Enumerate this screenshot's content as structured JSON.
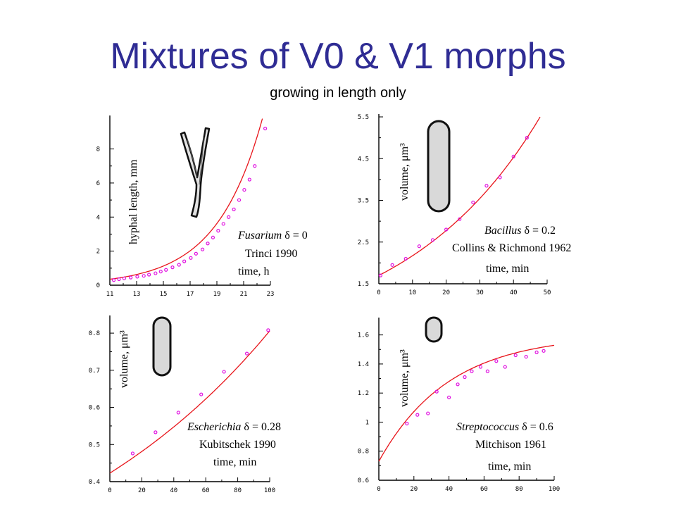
{
  "title": "Mixtures of V0 & V1 morphs",
  "subtitle": "growing in length only",
  "colors": {
    "title": "#2f2c94",
    "curve": "#e8151b",
    "points": "#e010e0"
  },
  "chart_data": [
    {
      "id": "fusarium",
      "type": "scatter",
      "ylabel": "hyphal length, mm",
      "xlabel": "time, h",
      "annotation_italic": "Fusarium",
      "annotation_rest": " δ = 0",
      "citation": "Trinci 1990",
      "x_ticks": [
        "11",
        "13",
        "15",
        "17",
        "19",
        "21",
        "23"
      ],
      "y_ticks": [
        "0",
        "2",
        "4",
        "6",
        "8"
      ],
      "xlim": [
        11,
        23.3
      ],
      "ylim": [
        0,
        9.8
      ],
      "x": [
        11.3,
        11.7,
        12.1,
        12.6,
        13.1,
        13.6,
        14.0,
        14.5,
        14.9,
        15.3,
        15.8,
        16.3,
        16.7,
        17.2,
        17.6,
        18.1,
        18.5,
        18.9,
        19.3,
        19.7,
        20.1,
        20.5,
        20.9,
        21.3,
        21.7,
        22.1,
        22.9
      ],
      "y": [
        0.3,
        0.35,
        0.4,
        0.45,
        0.5,
        0.55,
        0.62,
        0.7,
        0.8,
        0.9,
        1.05,
        1.2,
        1.4,
        1.6,
        1.85,
        2.1,
        2.45,
        2.8,
        3.2,
        3.6,
        4.0,
        4.45,
        5.0,
        5.6,
        6.2,
        7.0,
        9.2
      ],
      "fit": {
        "model": "exp",
        "a": 0.35,
        "b": 0.285,
        "x0": 11
      }
    },
    {
      "id": "bacillus",
      "type": "scatter",
      "ylabel": "volume, μm³",
      "xlabel": "time, min",
      "annotation_italic": "Bacillus",
      "annotation_rest": " δ = 0.2",
      "citation": "Collins & Richmond 1962",
      "x_ticks": [
        "0",
        "10",
        "20",
        "30",
        "40",
        "50"
      ],
      "y_ticks": [
        "1.5",
        "2.5",
        "3.5",
        "4.5",
        "5.5"
      ],
      "xlim": [
        0,
        50
      ],
      "ylim": [
        1.5,
        5.5
      ],
      "x": [
        0.5,
        4,
        8,
        12,
        16,
        20,
        24,
        28,
        32,
        36,
        40,
        44
      ],
      "y": [
        1.7,
        1.95,
        2.1,
        2.4,
        2.55,
        2.8,
        3.05,
        3.45,
        3.85,
        4.05,
        4.55,
        5.0
      ],
      "fit": {
        "model": "exp",
        "a": 1.7,
        "b": 0.0245,
        "x0": 0
      }
    },
    {
      "id": "escherichia",
      "type": "scatter",
      "ylabel": "volume, μm³",
      "xlabel": "time, min",
      "annotation_italic": "Escherichia",
      "annotation_rest": " δ = 0.28",
      "citation": "Kubitschek 1990",
      "x_ticks": [
        "0",
        "20",
        "40",
        "60",
        "80",
        "100"
      ],
      "y_ticks": [
        "0.4",
        "0.5",
        "0.6",
        "0.7",
        "0.8"
      ],
      "xlim": [
        0,
        105
      ],
      "ylim": [
        0.4,
        0.84
      ],
      "x": [
        15,
        30,
        45,
        60,
        75,
        90,
        104
      ],
      "y": [
        0.476,
        0.533,
        0.586,
        0.635,
        0.696,
        0.745,
        0.808
      ],
      "fit": {
        "model": "exp",
        "a": 0.423,
        "b": 0.00614,
        "x0": 0
      }
    },
    {
      "id": "streptococcus",
      "type": "scatter",
      "ylabel": "volume, μm³",
      "xlabel": "time, min",
      "annotation_italic": "Streptococcus",
      "annotation_rest": " δ = 0.6",
      "citation": "Mitchison 1961",
      "x_ticks": [
        "0",
        "20",
        "40",
        "60",
        "80",
        "100"
      ],
      "y_ticks": [
        "0.6",
        "0.8",
        "1",
        "1.2",
        "1.4",
        "1.6"
      ],
      "xlim": [
        0,
        100
      ],
      "ylim": [
        0.6,
        1.7
      ],
      "x": [
        16,
        22,
        28,
        33,
        40,
        45,
        49,
        53,
        58,
        62,
        67,
        72,
        78,
        84,
        90,
        94
      ],
      "y": [
        0.99,
        1.05,
        1.06,
        1.21,
        1.17,
        1.26,
        1.31,
        1.35,
        1.38,
        1.35,
        1.42,
        1.38,
        1.46,
        1.45,
        1.48,
        1.49
      ],
      "fit": {
        "model": "sat",
        "a": 1.6,
        "b": 0.87,
        "k": 0.025,
        "x0": 0
      }
    }
  ]
}
